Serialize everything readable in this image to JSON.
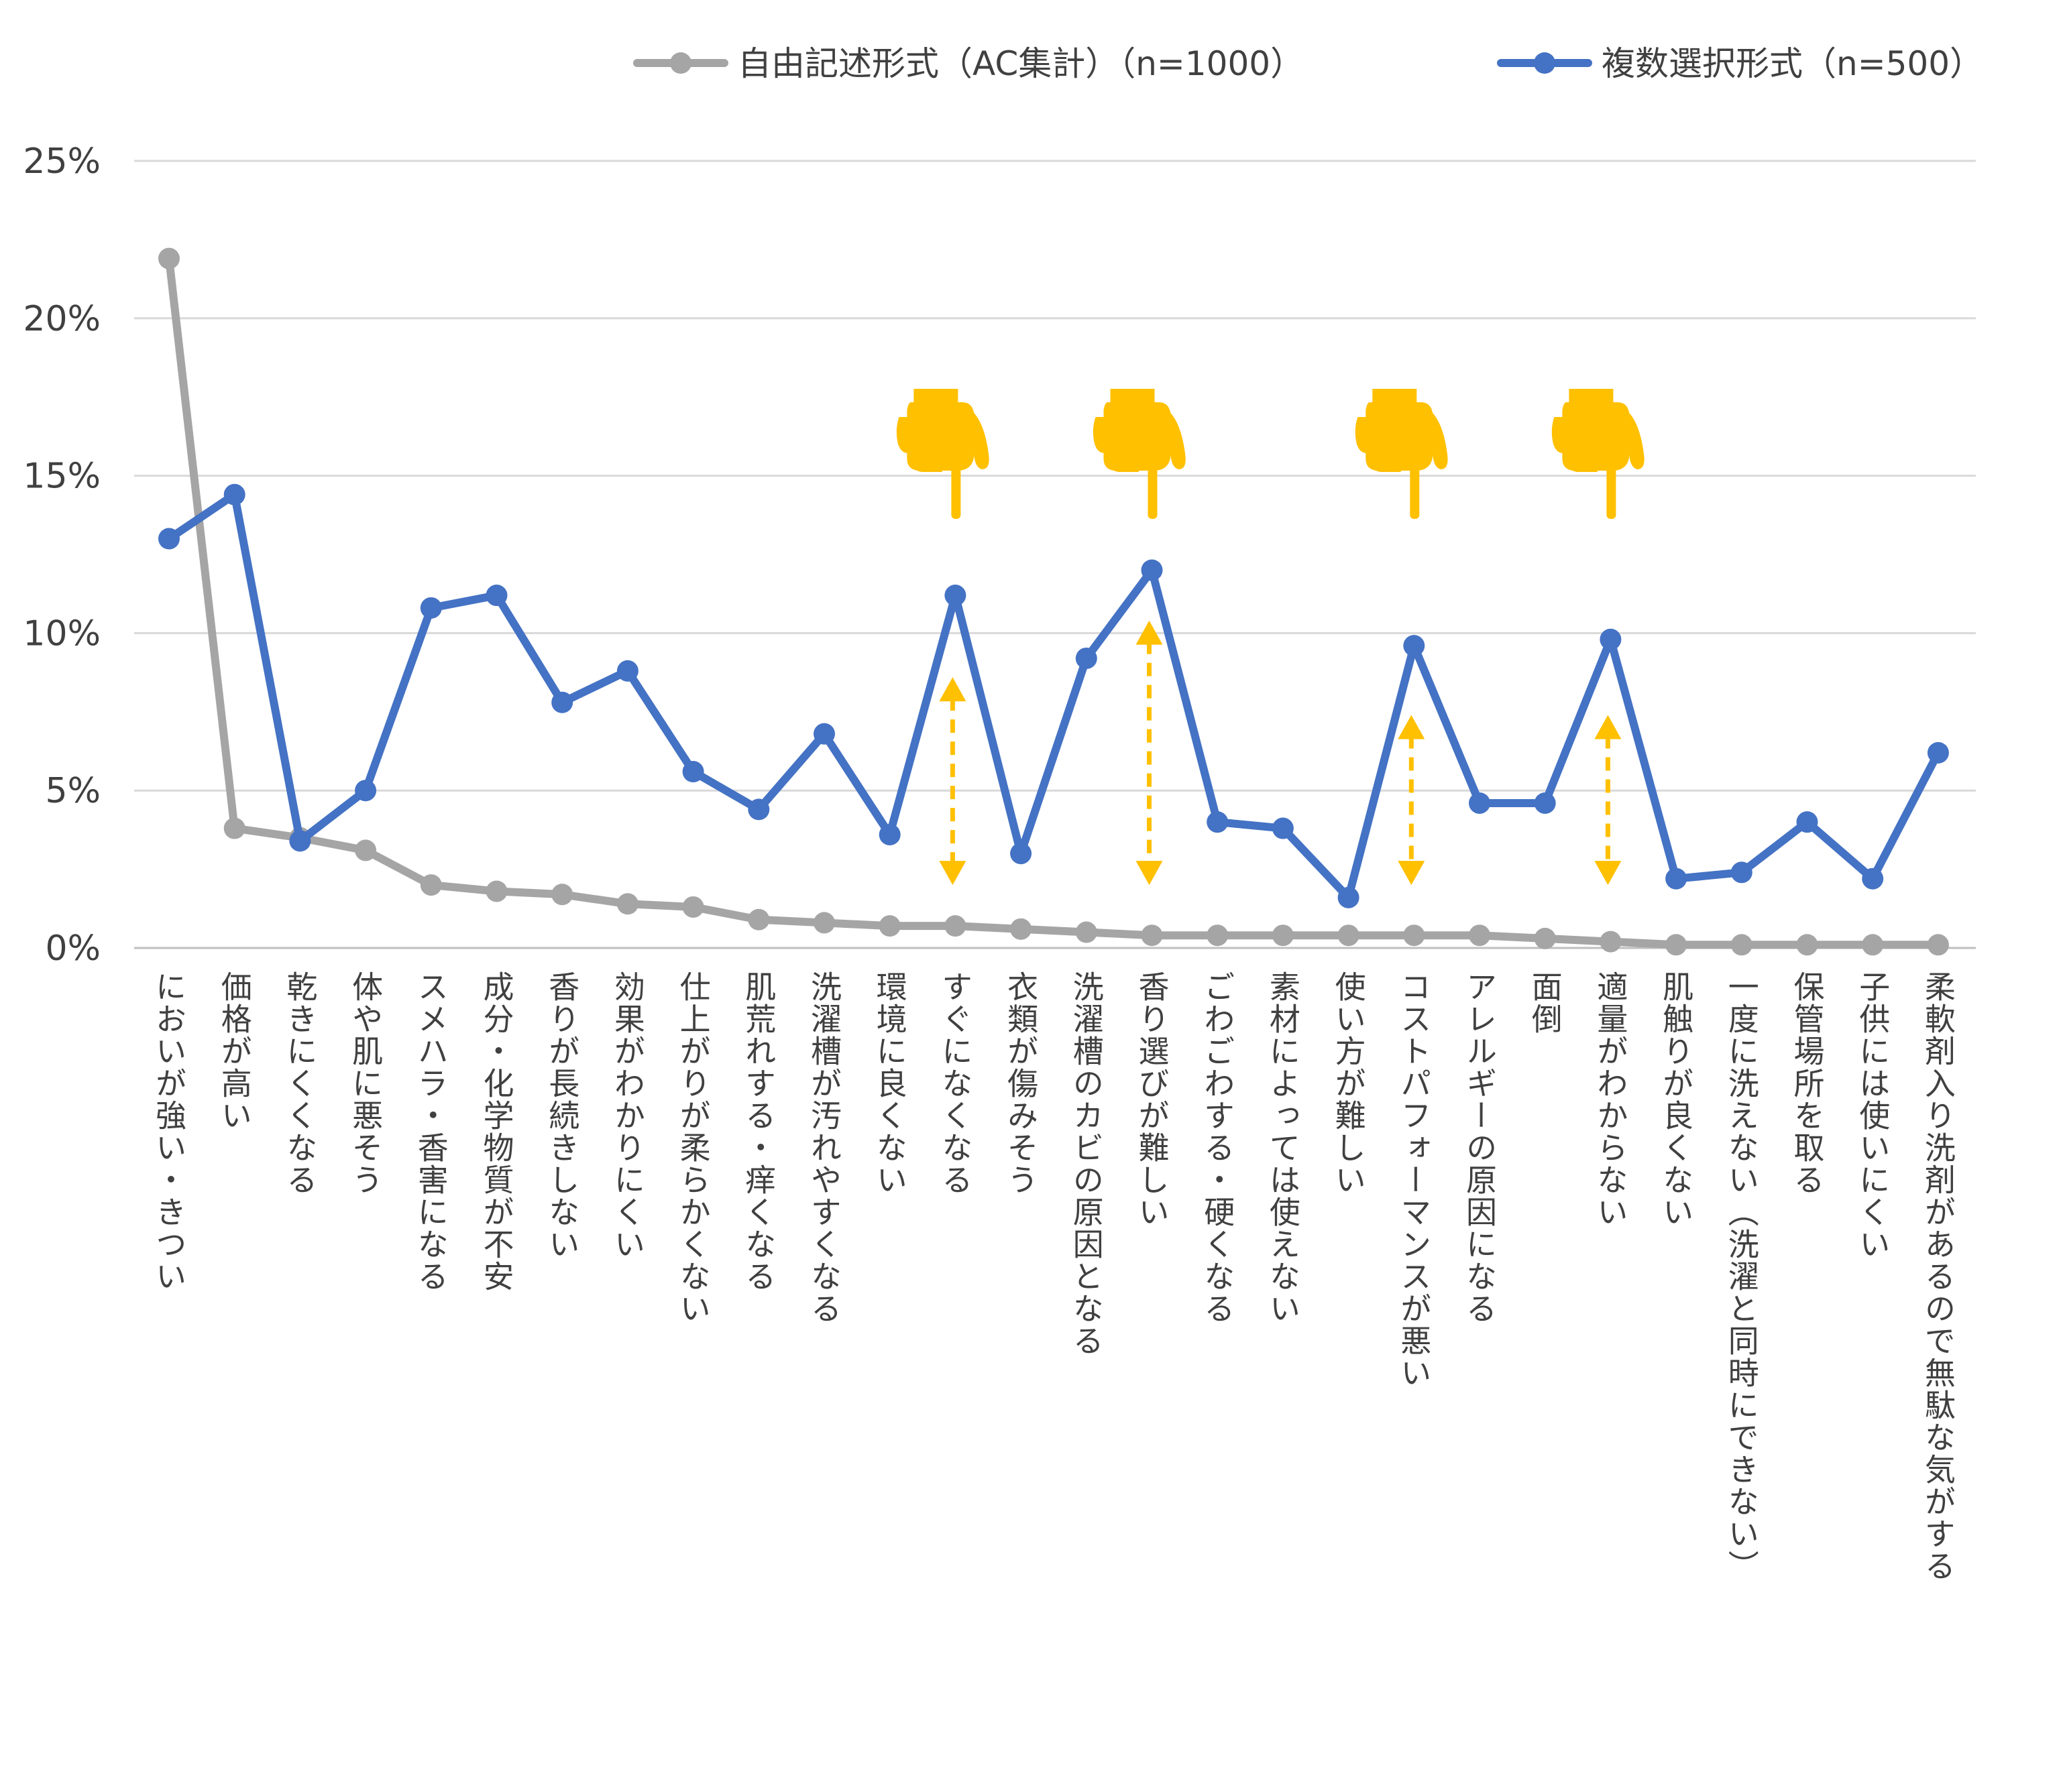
{
  "chart_data": {
    "type": "line",
    "title": "",
    "xlabel": "",
    "ylabel": "",
    "ylim": [
      0,
      25
    ],
    "ytick_labels": [
      "0%",
      "5%",
      "10%",
      "15%",
      "20%",
      "25%"
    ],
    "ytick_values": [
      0,
      5,
      10,
      15,
      20,
      25
    ],
    "grid": true,
    "legend_position": "top-right",
    "categories": [
      "においが強い・きつい",
      "価格が高い",
      "乾きにくくなる",
      "体や肌に悪そう",
      "スメハラ・香害になる",
      "成分・化学物質が不安",
      "香りが長続きしない",
      "効果がわかりにくい",
      "仕上がりが柔らかくない",
      "肌荒れする・痒くなる",
      "洗濯槽が汚れやすくなる",
      "環境に良くない",
      "すぐになくなる",
      "衣類が傷みそう",
      "洗濯槽のカビの原因となる",
      "香り選びが難しい",
      "ごわごわする・硬くなる",
      "素材によっては使えない",
      "使い方が難しい",
      "コストパフォーマンスが悪い",
      "アレルギーの原因になる",
      "面倒",
      "適量がわからない",
      "肌触りが良くない",
      "一度に洗えない（洗濯と同時にできない）",
      "保管場所を取る",
      "子供には使いにくい",
      "柔軟剤入り洗剤があるので無駄な気がする"
    ],
    "series": [
      {
        "name": "自由記述形式（AC集計）（n=1000）",
        "color": "#a5a5a5",
        "values": [
          21.9,
          3.8,
          3.5,
          3.1,
          2.0,
          1.8,
          1.7,
          1.4,
          1.3,
          0.9,
          0.8,
          0.7,
          0.7,
          0.6,
          0.5,
          0.4,
          0.4,
          0.4,
          0.4,
          0.4,
          0.4,
          0.3,
          0.2,
          0.1,
          0.1,
          0.1,
          0.1,
          0.1
        ]
      },
      {
        "name": "複数選択形式（n=500）",
        "color": "#4472c4",
        "values": [
          13.0,
          14.4,
          3.4,
          5.0,
          10.8,
          11.2,
          7.8,
          8.8,
          5.6,
          4.4,
          6.8,
          3.6,
          11.2,
          3.0,
          9.2,
          12.0,
          4.0,
          3.8,
          1.6,
          9.6,
          4.6,
          4.6,
          9.8,
          2.2,
          2.4,
          4.0,
          2.2,
          6.2
        ]
      }
    ],
    "annotations": {
      "color": "#ffc000",
      "pointer_icon": "pointing-hand-down-icon",
      "highlighted_categories": [
        "すぐになくなる",
        "香り選びが難しい",
        "コストパフォーマンスが悪い",
        "適量がわからない"
      ],
      "gap_arrows": [
        {
          "category": "すぐになくなる",
          "from": 2.0,
          "to": 8.6
        },
        {
          "category": "香り選びが難しい",
          "from": 2.0,
          "to": 10.4
        },
        {
          "category": "コストパフォーマンスが悪い",
          "from": 2.0,
          "to": 7.4
        },
        {
          "category": "適量がわからない",
          "from": 2.0,
          "to": 7.4
        }
      ]
    }
  }
}
